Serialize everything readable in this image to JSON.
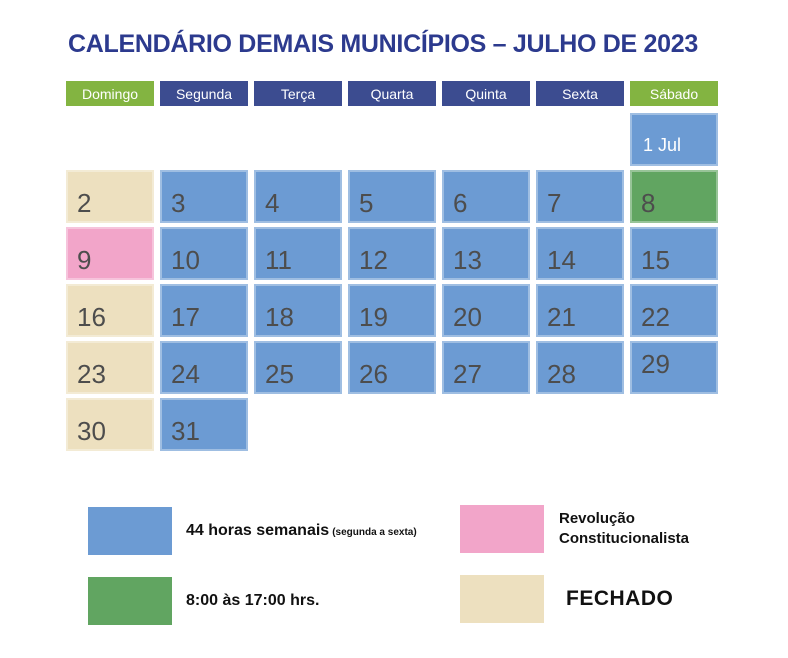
{
  "title": "CALENDÁRIO DEMAIS MUNICÍPIOS – JULHO DE 2023",
  "colors": {
    "title": "#2C3A8E",
    "header_weekday": "#3C4C90",
    "header_weekend": "#83B441",
    "hours44": "#6C9BD3",
    "hours8to17": "#61A561",
    "revolucao": "#F2A5C9",
    "fechado": "#EDE0BF",
    "day_number": "#4D4D4D",
    "legend_text": "#111111"
  },
  "weekdays": [
    {
      "label": "Domingo",
      "style": "weekend"
    },
    {
      "label": "Segunda",
      "style": "weekday"
    },
    {
      "label": "Terça",
      "style": "weekday"
    },
    {
      "label": "Quarta",
      "style": "weekday"
    },
    {
      "label": "Quinta",
      "style": "weekday"
    },
    {
      "label": "Sexta",
      "style": "weekday"
    },
    {
      "label": "Sábado",
      "style": "weekend"
    }
  ],
  "weeks": [
    [
      {
        "label": "",
        "type": "empty"
      },
      {
        "label": "",
        "type": "empty"
      },
      {
        "label": "",
        "type": "empty"
      },
      {
        "label": "",
        "type": "empty"
      },
      {
        "label": "",
        "type": "empty"
      },
      {
        "label": "",
        "type": "empty"
      },
      {
        "label": "1 Jul",
        "type": "hours44",
        "light": true
      }
    ],
    [
      {
        "label": "2",
        "type": "fechado"
      },
      {
        "label": "3",
        "type": "hours44"
      },
      {
        "label": "4",
        "type": "hours44"
      },
      {
        "label": "5",
        "type": "hours44"
      },
      {
        "label": "6",
        "type": "hours44"
      },
      {
        "label": "7",
        "type": "hours44"
      },
      {
        "label": "8",
        "type": "hours8to17"
      }
    ],
    [
      {
        "label": "9",
        "type": "revolucao"
      },
      {
        "label": "10",
        "type": "hours44"
      },
      {
        "label": "11",
        "type": "hours44"
      },
      {
        "label": "12",
        "type": "hours44"
      },
      {
        "label": "13",
        "type": "hours44"
      },
      {
        "label": "14",
        "type": "hours44"
      },
      {
        "label": "15",
        "type": "hours44"
      }
    ],
    [
      {
        "label": "16",
        "type": "fechado"
      },
      {
        "label": "17",
        "type": "hours44"
      },
      {
        "label": "18",
        "type": "hours44"
      },
      {
        "label": "19",
        "type": "hours44"
      },
      {
        "label": "20",
        "type": "hours44"
      },
      {
        "label": "21",
        "type": "hours44"
      },
      {
        "label": "22",
        "type": "hours44"
      }
    ],
    [
      {
        "label": "23",
        "type": "fechado"
      },
      {
        "label": "24",
        "type": "hours44"
      },
      {
        "label": "25",
        "type": "hours44"
      },
      {
        "label": "26",
        "type": "hours44"
      },
      {
        "label": "27",
        "type": "hours44"
      },
      {
        "label": "28",
        "type": "hours44"
      },
      {
        "label": "29",
        "type": "hours44",
        "raised": true
      }
    ],
    [
      {
        "label": "30",
        "type": "fechado"
      },
      {
        "label": "31",
        "type": "hours44"
      },
      {
        "label": "",
        "type": "empty"
      },
      {
        "label": "",
        "type": "empty"
      },
      {
        "label": "",
        "type": "empty"
      },
      {
        "label": "",
        "type": "empty"
      },
      {
        "label": "",
        "type": "empty"
      }
    ]
  ],
  "legend": {
    "items": [
      {
        "key": "hours44",
        "label": "44 horas semanais",
        "note": "(segunda a sexta)"
      },
      {
        "key": "hours8to17",
        "label": "8:00 às 17:00 hrs.",
        "note": ""
      },
      {
        "key": "revolucao",
        "label": "Revolução Constitucionalista",
        "note": ""
      },
      {
        "key": "fechado",
        "label": "FECHADO",
        "note": ""
      }
    ]
  }
}
